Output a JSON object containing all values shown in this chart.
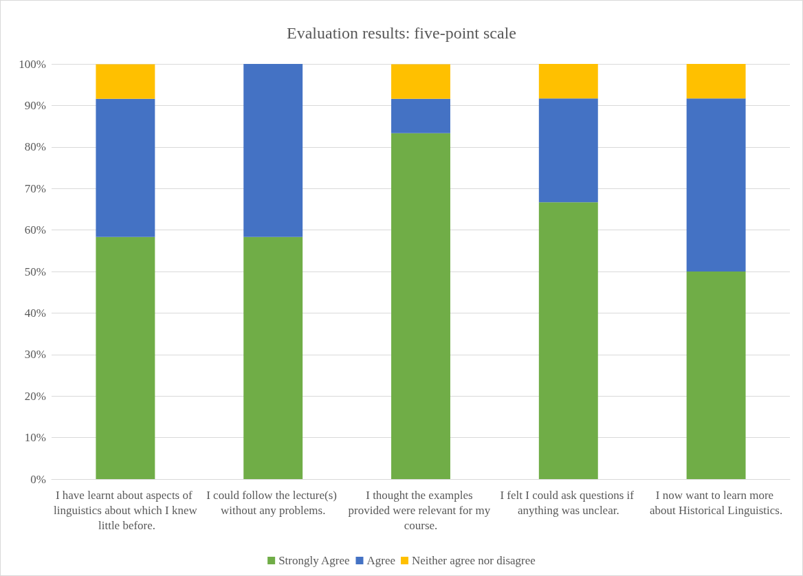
{
  "chart_data": {
    "type": "bar",
    "title": "Evaluation results: five-point scale",
    "stacked": true,
    "categories": [
      "I have learnt about aspects of linguistics about which I knew little before.",
      "I could follow the lecture(s) without any problems.",
      "I thought the examples provided were relevant for my course.",
      "I felt I could ask questions if anything was unclear.",
      "I now want to learn more about Historical Linguistics."
    ],
    "series": [
      {
        "name": "Strongly Agree",
        "color": "#70ad47",
        "values": [
          58.3,
          58.3,
          83.3,
          66.7,
          50
        ]
      },
      {
        "name": "Agree",
        "color": "#4472c4",
        "values": [
          33.3,
          41.7,
          8.3,
          25,
          41.7
        ]
      },
      {
        "name": "Neither agree nor disagree",
        "color": "#ffc000",
        "values": [
          8.3,
          0,
          8.3,
          8.3,
          8.3
        ]
      }
    ],
    "ylim": [
      0,
      100
    ],
    "yticks": [
      {
        "value": 0,
        "label": "0%"
      },
      {
        "value": 10,
        "label": "10%"
      },
      {
        "value": 20,
        "label": "20%"
      },
      {
        "value": 30,
        "label": "30%"
      },
      {
        "value": 40,
        "label": "40%"
      },
      {
        "value": 50,
        "label": "50%"
      },
      {
        "value": 60,
        "label": "60%"
      },
      {
        "value": 70,
        "label": "70%"
      },
      {
        "value": 80,
        "label": "80%"
      },
      {
        "value": 90,
        "label": "90%"
      },
      {
        "value": 100,
        "label": "100%"
      }
    ],
    "grid": "y",
    "legend": "bottom"
  }
}
